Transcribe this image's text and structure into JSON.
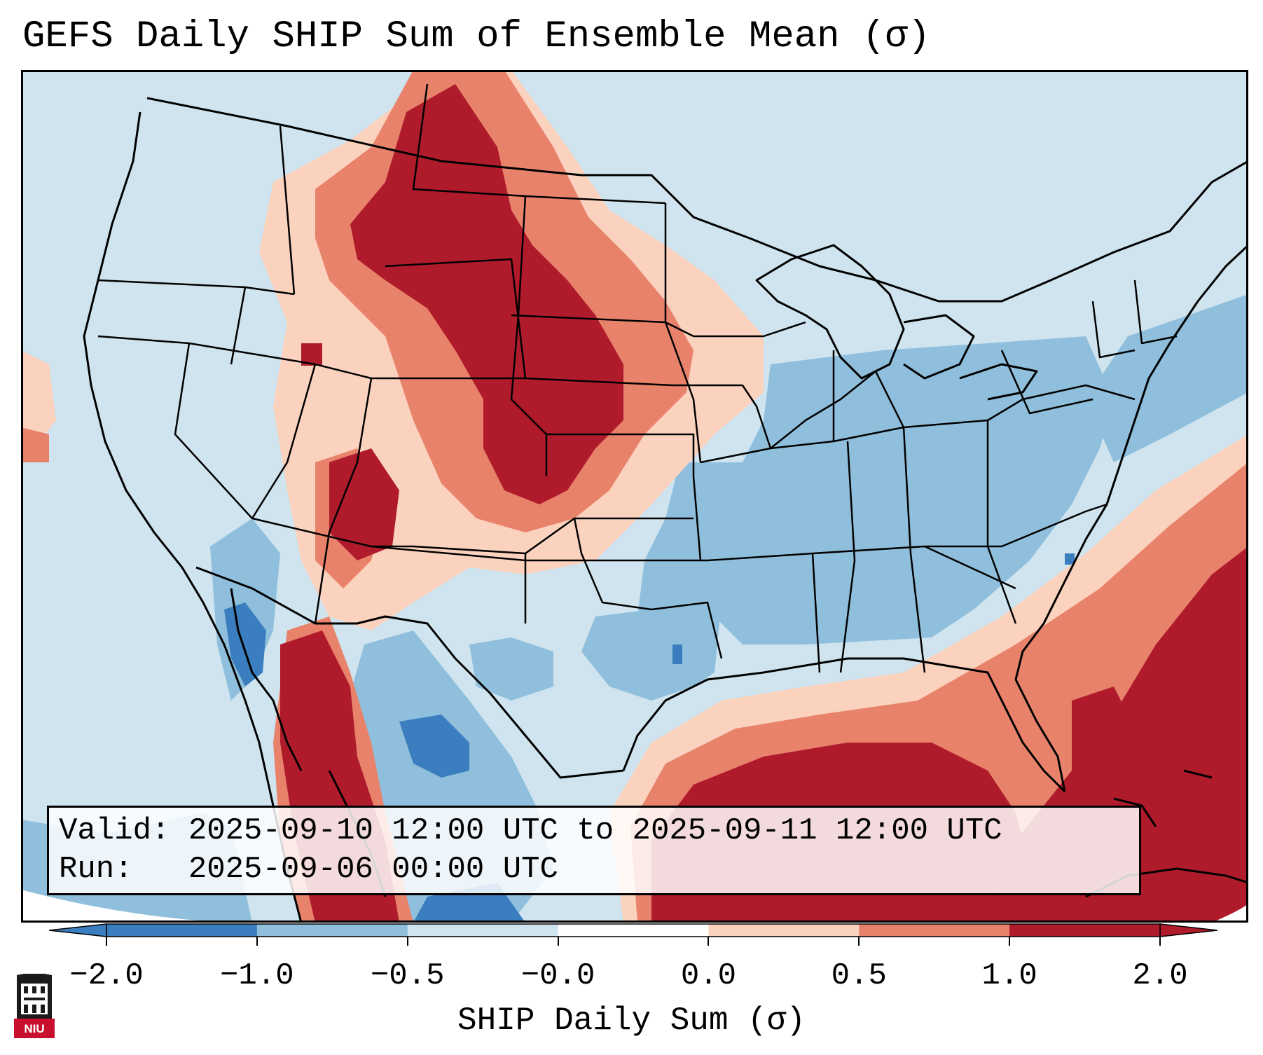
{
  "title": "GEFS Daily SHIP Sum of Ensemble Mean (σ)",
  "info": {
    "valid_label": "Valid:",
    "valid_value": "2025-09-10 12:00 UTC to 2025-09-11 12:00 UTC",
    "run_label": "Run:",
    "run_value": "2025-09-06 00:00 UTC"
  },
  "colorbar": {
    "label": "SHIP Daily Sum (σ)",
    "ticks": [
      "−2.0",
      "−1.0",
      "−0.5",
      "−0.0",
      "0.0",
      "0.5",
      "1.0",
      "2.0"
    ],
    "bins": [
      "#3a7ebf",
      "#8fbfdc",
      "#cfe4ef",
      "#ffffff",
      "#fbd2bd",
      "#e8826b",
      "#b01b2c"
    ],
    "extend": "both"
  },
  "map": {
    "ocean_color": "#cfe4ef",
    "outline_color": "#000000",
    "regions": [
      {
        "name": "northern-plains-high",
        "level": "≥2.0"
      },
      {
        "name": "gulf-of-mexico-high",
        "level": "≥2.0"
      },
      {
        "name": "western-atlantic-high",
        "level": "≥2.0"
      },
      {
        "name": "southeast-us-low",
        "level": "−1.0 to −0.5"
      },
      {
        "name": "baja-california-low",
        "level": "≤−2.0"
      }
    ]
  },
  "logo": {
    "text": "NIU"
  }
}
